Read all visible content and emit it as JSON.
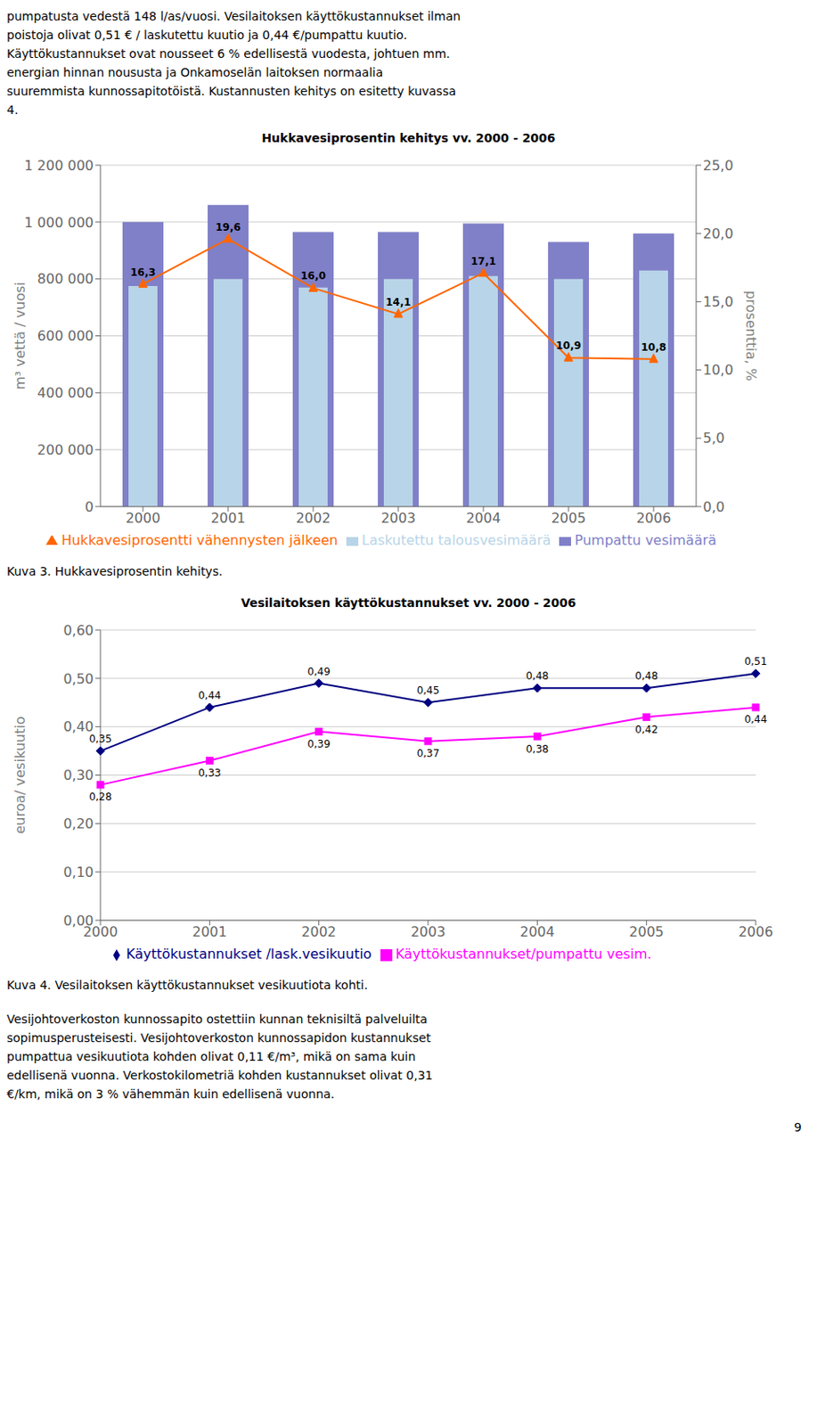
{
  "page_text_top": [
    "pumpatusta vedestä 148 l/as/vuosi. Vesilaitoksen käyttökustannukset ilman",
    "poistoja olivat 0,51 € / laskutettu kuutio ja 0,44 €/pumpattu kuutio.",
    "Käyttökustannukset ovat nousseet 6 % edellisestä vuodesta, johtuen mm.",
    "energian hinnan noususta ja Onkamoselän laitoksen normaalia",
    "suuremmista kunnossapitotöistä. Kustannusten kehitys on esitetty kuvassa",
    "4."
  ],
  "chart_data": [
    {
      "type": "bar",
      "title": "Hukkavesiprosentin kehitys vv. 2000 - 2006",
      "caption": "Kuva 3. Hukkavesiprosentin kehitys.",
      "categories": [
        "2000",
        "2001",
        "2002",
        "2003",
        "2004",
        "2005",
        "2006"
      ],
      "ylabel": "m³ vettä / vuosi",
      "y2label": "prosenttia, %",
      "ylim": [
        0,
        1200000
      ],
      "yticks": [
        0,
        {
          "value": 200000,
          "label": "200 000"
        },
        {
          "value": 400000,
          "label": "400 000"
        },
        {
          "value": 600000,
          "label": "600 000"
        },
        {
          "value": 800000,
          "label": "800 000"
        },
        {
          "value": 1000000,
          "label": "1 000 000"
        },
        {
          "value": 1200000,
          "label": "1 200 000"
        }
      ],
      "y2lim": [
        0.0,
        25.0
      ],
      "y2ticks": [
        {
          "value": 0.0,
          "label": "0,0"
        },
        {
          "value": 5.0,
          "label": "5,0"
        },
        {
          "value": 10.0,
          "label": "10,0"
        },
        {
          "value": 15.0,
          "label": "15,0"
        },
        {
          "value": 20.0,
          "label": "20,0"
        },
        {
          "value": 25.0,
          "label": "25,0"
        }
      ],
      "grid": true,
      "legend": "bottom",
      "series": [
        {
          "name": "Pumpattu vesimäärä",
          "type": "bar",
          "color": "#8080c8",
          "values": [
            1000000,
            1060000,
            965000,
            965000,
            995000,
            930000,
            960000
          ]
        },
        {
          "name": "Laskutettu talousvesimäärä",
          "type": "bar",
          "color": "#b8d4e8",
          "values": [
            775000,
            800000,
            770000,
            800000,
            810000,
            800000,
            830000
          ]
        },
        {
          "name": "Hukkavesiprosentti vähennysten jälkeen",
          "type": "line",
          "axis": "y2",
          "color": "#ff6600",
          "marker": "triangle",
          "data_labels": true,
          "values": [
            16.3,
            19.6,
            16.0,
            14.1,
            17.1,
            10.9,
            10.8
          ],
          "value_labels": [
            "16,3",
            "19,6",
            "16,0",
            "14,1",
            "17,1",
            "10,9",
            "10,8"
          ]
        }
      ]
    },
    {
      "type": "line",
      "title": "Vesilaitoksen käyttökustannukset vv. 2000 - 2006",
      "caption": "Kuva 4. Vesilaitoksen käyttökustannukset vesikuutiota kohti.",
      "categories": [
        "2000",
        "2001",
        "2002",
        "2003",
        "2004",
        "2005",
        "2006"
      ],
      "ylabel": "euroa/ vesikuutio",
      "ylim": [
        0.0,
        0.6
      ],
      "yticks": [
        {
          "value": 0.0,
          "label": "0,00"
        },
        {
          "value": 0.1,
          "label": "0,10"
        },
        {
          "value": 0.2,
          "label": "0,20"
        },
        {
          "value": 0.3,
          "label": "0,30"
        },
        {
          "value": 0.4,
          "label": "0,40"
        },
        {
          "value": 0.5,
          "label": "0,50"
        },
        {
          "value": 0.6,
          "label": "0,60"
        }
      ],
      "grid": true,
      "legend": "bottom",
      "series": [
        {
          "name": "Käyttökustannukset /lask.vesikuutio",
          "color": "#000080",
          "marker": "diamond",
          "data_labels": true,
          "values": [
            0.35,
            0.44,
            0.49,
            0.45,
            0.48,
            0.48,
            0.51
          ],
          "value_labels": [
            "0,35",
            "0,44",
            "0,49",
            "0,45",
            "0,48",
            "0,48",
            "0,51"
          ]
        },
        {
          "name": "Käyttökustannukset/pumpattu vesim.",
          "color": "#ff00ff",
          "marker": "square",
          "data_labels": true,
          "values": [
            0.28,
            0.33,
            0.39,
            0.37,
            0.38,
            0.42,
            0.44
          ],
          "value_labels": [
            "0,28",
            "0,33",
            "0,39",
            "0,37",
            "0,38",
            "0,42",
            "0,44"
          ]
        }
      ]
    }
  ],
  "page_text_bottom": [
    "Vesijohtoverkoston kunnossapito ostettiin kunnan teknisiltä palveluilta",
    "sopimusperusteisesti. Vesijohtoverkoston kunnossapidon kustannukset",
    "pumpattua vesikuutiota kohden olivat 0,11 €/m³, mikä on sama kuin",
    "edellisenä vuonna. Verkostokilometriä kohden kustannukset olivat 0,31",
    "€/km, mikä on 3 % vähemmän kuin edellisenä vuonna."
  ],
  "page_number": "9"
}
